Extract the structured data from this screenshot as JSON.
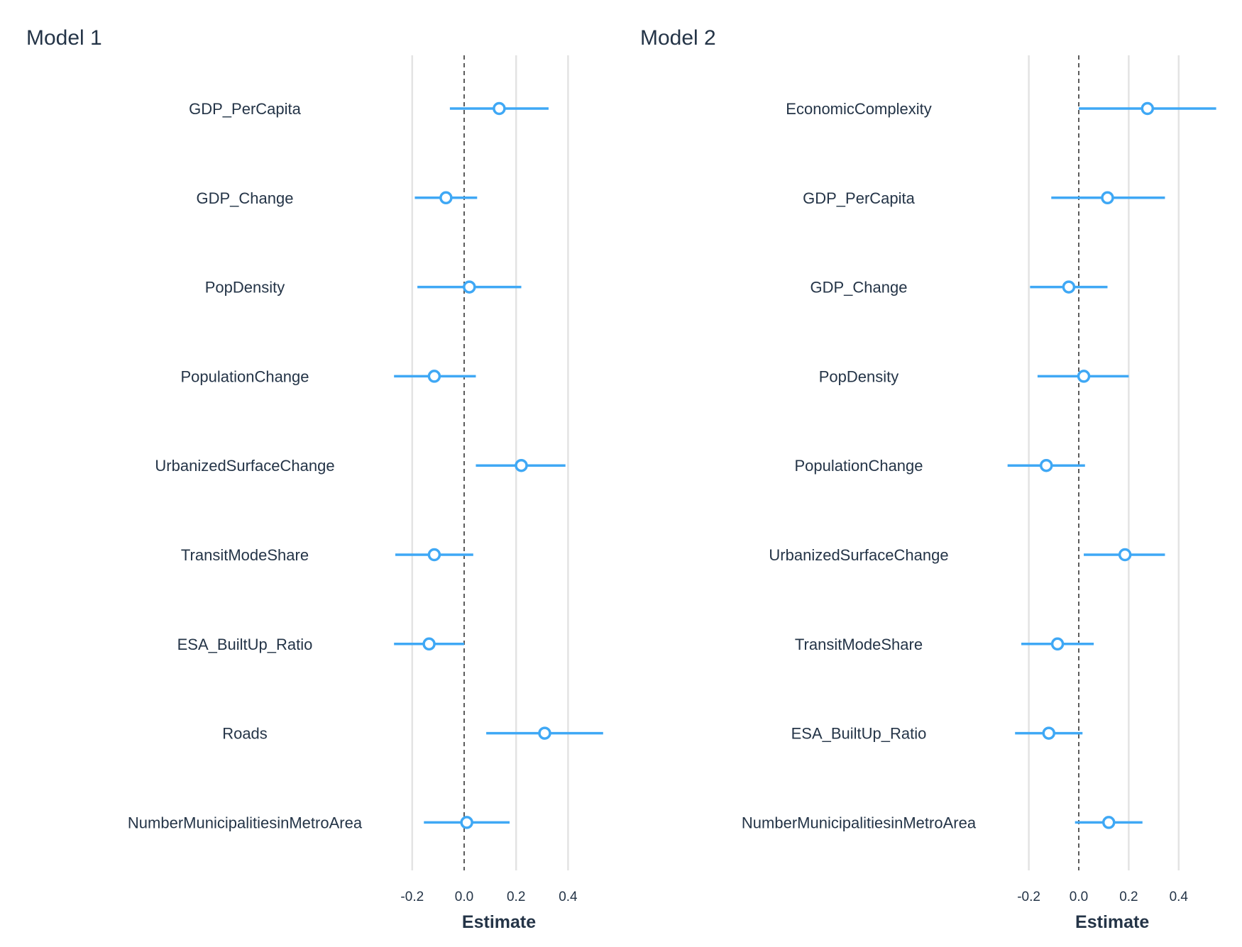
{
  "colors": {
    "series": "#3fa8f5",
    "text": "#243447",
    "grid": "#e3e3e3",
    "zero_line": "#333333"
  },
  "chart_data": [
    {
      "type": "scatter",
      "subtype": "coefficient-plot",
      "title": "Model 1",
      "xlabel": "Estimate",
      "xlim": [
        -0.3,
        0.55
      ],
      "xticks": [
        -0.2,
        0.0,
        0.2,
        0.4
      ],
      "xtick_labels": [
        "-0.2",
        "0.0",
        "0.2",
        "0.4"
      ],
      "grid": true,
      "reference_line": 0,
      "terms": [
        {
          "name": "GDP_PerCapita",
          "estimate": 0.135,
          "low": -0.055,
          "high": 0.325
        },
        {
          "name": "GDP_Change",
          "estimate": -0.07,
          "low": -0.19,
          "high": 0.05
        },
        {
          "name": "PopDensity",
          "estimate": 0.02,
          "low": -0.18,
          "high": 0.22
        },
        {
          "name": "PopulationChange",
          "estimate": -0.115,
          "low": -0.27,
          "high": 0.045
        },
        {
          "name": "UrbanizedSurfaceChange",
          "estimate": 0.22,
          "low": 0.045,
          "high": 0.39
        },
        {
          "name": "TransitModeShare",
          "estimate": -0.115,
          "low": -0.265,
          "high": 0.035
        },
        {
          "name": "ESA_BuiltUp_Ratio",
          "estimate": -0.135,
          "low": -0.27,
          "high": 0.0
        },
        {
          "name": "Roads",
          "estimate": 0.31,
          "low": 0.085,
          "high": 0.535
        },
        {
          "name": "NumberMunicipalitiesinMetroArea",
          "estimate": 0.01,
          "low": -0.155,
          "high": 0.175
        }
      ]
    },
    {
      "type": "scatter",
      "subtype": "coefficient-plot",
      "title": "Model 2",
      "xlabel": "Estimate",
      "xlim": [
        -0.3,
        0.55
      ],
      "xticks": [
        -0.2,
        0.0,
        0.2,
        0.4
      ],
      "xtick_labels": [
        "-0.2",
        "0.0",
        "0.2",
        "0.4"
      ],
      "grid": true,
      "reference_line": 0,
      "terms": [
        {
          "name": "EconomicComplexity",
          "estimate": 0.275,
          "low": 0.0,
          "high": 0.55
        },
        {
          "name": "GDP_PerCapita",
          "estimate": 0.115,
          "low": -0.11,
          "high": 0.345
        },
        {
          "name": "GDP_Change",
          "estimate": -0.04,
          "low": -0.195,
          "high": 0.115
        },
        {
          "name": "PopDensity",
          "estimate": 0.02,
          "low": -0.165,
          "high": 0.2
        },
        {
          "name": "PopulationChange",
          "estimate": -0.13,
          "low": -0.285,
          "high": 0.025
        },
        {
          "name": "UrbanizedSurfaceChange",
          "estimate": 0.185,
          "low": 0.02,
          "high": 0.345
        },
        {
          "name": "TransitModeShare",
          "estimate": -0.085,
          "low": -0.23,
          "high": 0.06
        },
        {
          "name": "ESA_BuiltUp_Ratio",
          "estimate": -0.12,
          "low": -0.255,
          "high": 0.015
        },
        {
          "name": "NumberMunicipalitiesinMetroArea",
          "estimate": 0.12,
          "low": -0.015,
          "high": 0.255
        }
      ]
    }
  ]
}
